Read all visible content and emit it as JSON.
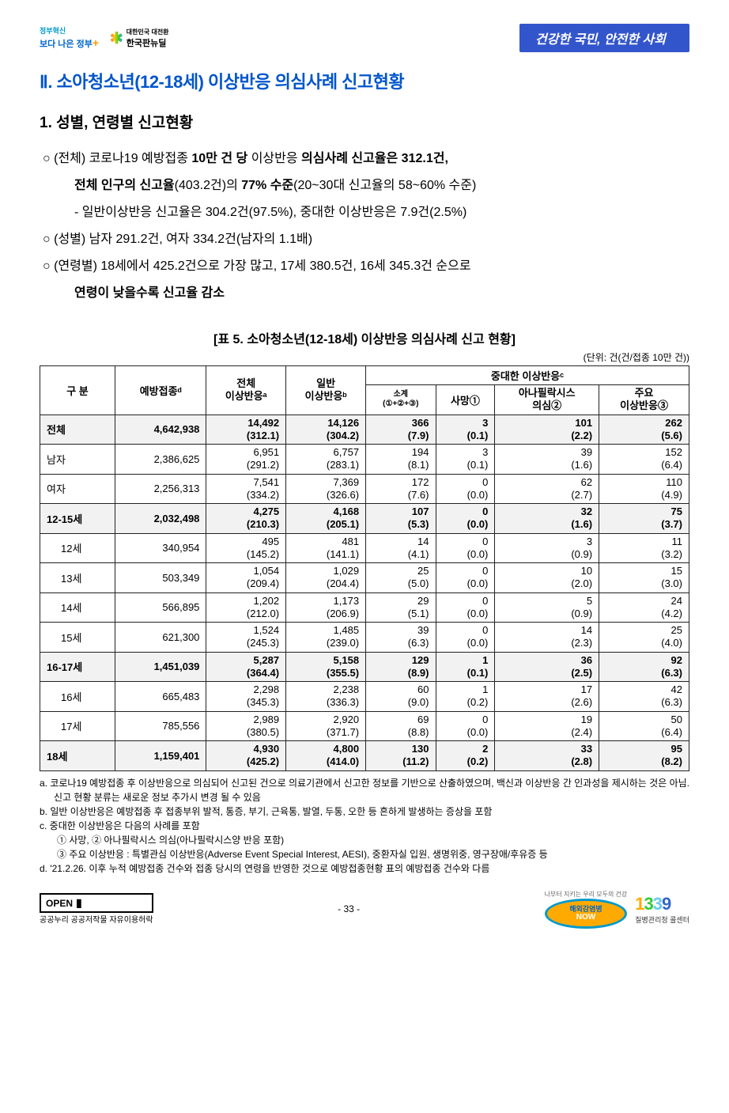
{
  "header": {
    "logo1_top": "정부혁신",
    "logo1_main": "보다 나은 정부",
    "logo2_top": "대한민국 대전환",
    "logo2_main": "한국판뉴딜",
    "banner": "건강한 국민, 안전한 사회"
  },
  "title_h1": "Ⅱ. 소아청소년(12-18세) 이상반응 의심사례 신고현황",
  "title_h2": "1. 성별, 연령별 신고현황",
  "bullets": {
    "p1a": "○ (전체) 코로나19 예방접종 ",
    "p1b": "10만 건 당",
    "p1c": " 이상반응 ",
    "p1d": "의심사례 신고율은 312.1건,",
    "p2a": "전체 인구의 신고율",
    "p2b": "(403.2건)의 ",
    "p2c": "77% 수준",
    "p2d": "(20~30대 신고율의 58~60% 수준)",
    "p3": "- 일반이상반응 신고율은 304.2건(97.5%), 중대한 이상반응은 7.9건(2.5%)",
    "p4": "○ (성별) 남자 291.2건, 여자 334.2건(남자의 1.1배)",
    "p5": "○ (연령별) 18세에서 425.2건으로 가장 많고, 17세 380.5건, 16세 345.3건 순으로",
    "p6a": "연령이 낮을수록 신고율 감소"
  },
  "table": {
    "caption": "[표 5. 소아청소년(12-18세) 이상반응 의심사례 신고 현황]",
    "unit": "(단위: 건(건/접종 10만 건))",
    "head": {
      "c1": "구 분",
      "c2": "예방접종ᵈ",
      "c3": "전체\n이상반응ᵃ",
      "c4": "일반\n이상반응ᵇ",
      "c5": "중대한 이상반응ᶜ",
      "c5_1": "소계\n(①+②+③)",
      "c5_2": "사망①",
      "c5_3": "아나필락시스\n의심②",
      "c5_4": "주요\n이상반응③"
    },
    "rows": [
      {
        "shade": true,
        "label": "전체",
        "vacc": "4,642,938",
        "tot": "14,492",
        "tot_r": "(312.1)",
        "gen": "14,126",
        "gen_r": "(304.2)",
        "sub": "366",
        "sub_r": "(7.9)",
        "dth": "3",
        "dth_r": "(0.1)",
        "ana": "101",
        "ana_r": "(2.2)",
        "maj": "262",
        "maj_r": "(5.6)"
      },
      {
        "shade": false,
        "label": "남자",
        "vacc": "2,386,625",
        "tot": "6,951",
        "tot_r": "(291.2)",
        "gen": "6,757",
        "gen_r": "(283.1)",
        "sub": "194",
        "sub_r": "(8.1)",
        "dth": "3",
        "dth_r": "(0.1)",
        "ana": "39",
        "ana_r": "(1.6)",
        "maj": "152",
        "maj_r": "(6.4)"
      },
      {
        "shade": false,
        "label": "여자",
        "vacc": "2,256,313",
        "tot": "7,541",
        "tot_r": "(334.2)",
        "gen": "7,369",
        "gen_r": "(326.6)",
        "sub": "172",
        "sub_r": "(7.6)",
        "dth": "0",
        "dth_r": "(0.0)",
        "ana": "62",
        "ana_r": "(2.7)",
        "maj": "110",
        "maj_r": "(4.9)"
      },
      {
        "shade": true,
        "label": "12-15세",
        "vacc": "2,032,498",
        "tot": "4,275",
        "tot_r": "(210.3)",
        "gen": "4,168",
        "gen_r": "(205.1)",
        "sub": "107",
        "sub_r": "(5.3)",
        "dth": "0",
        "dth_r": "(0.0)",
        "ana": "32",
        "ana_r": "(1.6)",
        "maj": "75",
        "maj_r": "(3.7)"
      },
      {
        "shade": false,
        "label": "12세",
        "vacc": "340,954",
        "tot": "495",
        "tot_r": "(145.2)",
        "gen": "481",
        "gen_r": "(141.1)",
        "sub": "14",
        "sub_r": "(4.1)",
        "dth": "0",
        "dth_r": "(0.0)",
        "ana": "3",
        "ana_r": "(0.9)",
        "maj": "11",
        "maj_r": "(3.2)"
      },
      {
        "shade": false,
        "label": "13세",
        "vacc": "503,349",
        "tot": "1,054",
        "tot_r": "(209.4)",
        "gen": "1,029",
        "gen_r": "(204.4)",
        "sub": "25",
        "sub_r": "(5.0)",
        "dth": "0",
        "dth_r": "(0.0)",
        "ana": "10",
        "ana_r": "(2.0)",
        "maj": "15",
        "maj_r": "(3.0)"
      },
      {
        "shade": false,
        "label": "14세",
        "vacc": "566,895",
        "tot": "1,202",
        "tot_r": "(212.0)",
        "gen": "1,173",
        "gen_r": "(206.9)",
        "sub": "29",
        "sub_r": "(5.1)",
        "dth": "0",
        "dth_r": "(0.0)",
        "ana": "5",
        "ana_r": "(0.9)",
        "maj": "24",
        "maj_r": "(4.2)"
      },
      {
        "shade": false,
        "label": "15세",
        "vacc": "621,300",
        "tot": "1,524",
        "tot_r": "(245.3)",
        "gen": "1,485",
        "gen_r": "(239.0)",
        "sub": "39",
        "sub_r": "(6.3)",
        "dth": "0",
        "dth_r": "(0.0)",
        "ana": "14",
        "ana_r": "(2.3)",
        "maj": "25",
        "maj_r": "(4.0)"
      },
      {
        "shade": true,
        "label": "16-17세",
        "vacc": "1,451,039",
        "tot": "5,287",
        "tot_r": "(364.4)",
        "gen": "5,158",
        "gen_r": "(355.5)",
        "sub": "129",
        "sub_r": "(8.9)",
        "dth": "1",
        "dth_r": "(0.1)",
        "ana": "36",
        "ana_r": "(2.5)",
        "maj": "92",
        "maj_r": "(6.3)"
      },
      {
        "shade": false,
        "label": "16세",
        "vacc": "665,483",
        "tot": "2,298",
        "tot_r": "(345.3)",
        "gen": "2,238",
        "gen_r": "(336.3)",
        "sub": "60",
        "sub_r": "(9.0)",
        "dth": "1",
        "dth_r": "(0.2)",
        "ana": "17",
        "ana_r": "(2.6)",
        "maj": "42",
        "maj_r": "(6.3)"
      },
      {
        "shade": false,
        "label": "17세",
        "vacc": "785,556",
        "tot": "2,989",
        "tot_r": "(380.5)",
        "gen": "2,920",
        "gen_r": "(371.7)",
        "sub": "69",
        "sub_r": "(8.8)",
        "dth": "0",
        "dth_r": "(0.0)",
        "ana": "19",
        "ana_r": "(2.4)",
        "maj": "50",
        "maj_r": "(6.4)"
      },
      {
        "shade": true,
        "label": "18세",
        "vacc": "1,159,401",
        "tot": "4,930",
        "tot_r": "(425.2)",
        "gen": "4,800",
        "gen_r": "(414.0)",
        "sub": "130",
        "sub_r": "(11.2)",
        "dth": "2",
        "dth_r": "(0.2)",
        "ana": "33",
        "ana_r": "(2.8)",
        "maj": "95",
        "maj_r": "(8.2)"
      }
    ]
  },
  "notes": {
    "a": "a. 코로나19 예방접종 후 이상반응으로 의심되어 신고된 건으로 의료기관에서 신고한 정보를 기반으로 산출하였으며, 백신과 이상반응 간 인과성을 제시하는 것은 아님. 신고 현황 분류는 새로운 정보 추가시 변경 될 수 있음",
    "b": "b. 일반 이상반응은 예방접종 후 접종부위 발적, 통증, 부기, 근육통, 발열, 두통, 오한 등 흔하게 발생하는 증상을 포함",
    "c": "c. 중대한 이상반응은 다음의 사례를 포함",
    "c1": "① 사망, ② 아나필락시스 의심(아나필락시스양 반응 포함)",
    "c2": "③ 주요 이상반응 : 특별관심 이상반응(Adverse Event Special Interest, AESI), 중환자실 입원, 생명위중, 영구장애/후유증 등",
    "d": "d. '21.2.26. 이후 누적 예방접종 건수와 접종 당시의 연령을 반영한 것으로 예방접종현황 표의 예방접종 건수와 다름"
  },
  "footer": {
    "open": "OPEN",
    "open_sub": "공공누리  공공저작물 자유이용허락",
    "page": "- 33 -",
    "now_top": "해외감염병",
    "now": "NOW",
    "call_sub": "질병관리청 콜센터",
    "nabuteo": "나부터 지키는 우리 모두의 건강"
  }
}
